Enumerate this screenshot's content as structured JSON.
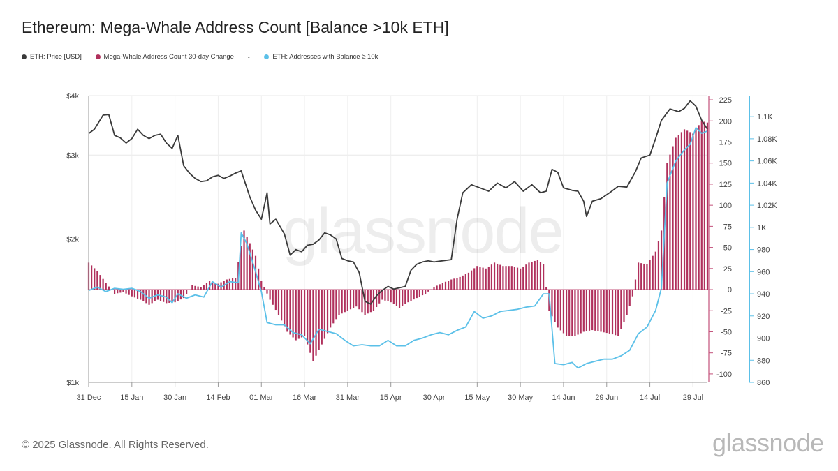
{
  "title": "Ethereum: Mega-Whale Address Count [Balance >10k ETH]",
  "legend": [
    {
      "label": "ETH: Price [USD]",
      "color": "#3a3a3a"
    },
    {
      "label": "Mega-Whale Address Count 30-day Change",
      "color": "#b0305c"
    },
    {
      "label": "ETH: Addresses with Balance ≥ 10k",
      "color": "#5bc0e8"
    }
  ],
  "legend_separator": "-",
  "watermark": "glassnode",
  "footer": "© 2025 Glassnode. All Rights Reserved.",
  "brand": "glassnode",
  "chart_data": {
    "type": "line",
    "x_tick_labels": [
      "31 Dec",
      "15 Jan",
      "30 Jan",
      "14 Feb",
      "01 Mar",
      "16 Mar",
      "31 Mar",
      "15 Apr",
      "30 Apr",
      "15 May",
      "30 May",
      "14 Jun",
      "29 Jun",
      "14 Jul",
      "29 Jul"
    ],
    "x_tick_dates": [
      "2024-12-31",
      "2025-01-15",
      "2025-01-30",
      "2025-02-14",
      "2025-03-01",
      "2025-03-16",
      "2025-03-31",
      "2025-04-15",
      "2025-04-30",
      "2025-05-15",
      "2025-05-30",
      "2025-06-14",
      "2025-06-29",
      "2025-07-14",
      "2025-07-29"
    ],
    "x_range": [
      "2024-12-31",
      "2025-08-03"
    ],
    "y_left": {
      "label": "",
      "scale": "log",
      "range": [
        1000,
        4000
      ],
      "tick_labels": [
        "$1k",
        "$2k",
        "$3k",
        "$4k"
      ],
      "tick_values": [
        1000,
        2000,
        3000,
        4000
      ]
    },
    "y_right_change": {
      "label": "",
      "range": [
        -110,
        230
      ],
      "ticks": [
        -100,
        -75,
        -50,
        -25,
        0,
        25,
        50,
        75,
        100,
        125,
        150,
        175,
        200,
        225
      ]
    },
    "y_right_count": {
      "label": "",
      "range": [
        860,
        1119
      ],
      "tick_labels": [
        "860",
        "880",
        "900",
        "920",
        "940",
        "960",
        "980",
        "1K",
        "1.02K",
        "1.04K",
        "1.06K",
        "1.08K",
        "1.1K"
      ],
      "tick_values": [
        860,
        880,
        900,
        920,
        940,
        960,
        980,
        1000,
        1020,
        1040,
        1060,
        1080,
        1100
      ]
    },
    "grid": true,
    "series": [
      {
        "name": "ETH: Price [USD]",
        "axis": "left",
        "type": "line",
        "color": "#3a3a3a",
        "points": [
          [
            "2024-12-31",
            3330
          ],
          [
            "2025-01-02",
            3400
          ],
          [
            "2025-01-05",
            3640
          ],
          [
            "2025-01-07",
            3650
          ],
          [
            "2025-01-09",
            3300
          ],
          [
            "2025-01-11",
            3260
          ],
          [
            "2025-01-13",
            3180
          ],
          [
            "2025-01-15",
            3250
          ],
          [
            "2025-01-17",
            3400
          ],
          [
            "2025-01-19",
            3300
          ],
          [
            "2025-01-21",
            3250
          ],
          [
            "2025-01-23",
            3300
          ],
          [
            "2025-01-25",
            3320
          ],
          [
            "2025-01-27",
            3180
          ],
          [
            "2025-01-29",
            3100
          ],
          [
            "2025-01-31",
            3300
          ],
          [
            "2025-02-02",
            2850
          ],
          [
            "2025-02-04",
            2750
          ],
          [
            "2025-02-06",
            2680
          ],
          [
            "2025-02-08",
            2640
          ],
          [
            "2025-02-10",
            2650
          ],
          [
            "2025-02-12",
            2700
          ],
          [
            "2025-02-14",
            2720
          ],
          [
            "2025-02-16",
            2680
          ],
          [
            "2025-02-18",
            2710
          ],
          [
            "2025-02-20",
            2750
          ],
          [
            "2025-02-22",
            2780
          ],
          [
            "2025-02-25",
            2450
          ],
          [
            "2025-02-27",
            2300
          ],
          [
            "2025-03-01",
            2200
          ],
          [
            "2025-03-03",
            2500
          ],
          [
            "2025-03-04",
            2150
          ],
          [
            "2025-03-06",
            2200
          ],
          [
            "2025-03-09",
            2050
          ],
          [
            "2025-03-11",
            1850
          ],
          [
            "2025-03-13",
            1900
          ],
          [
            "2025-03-15",
            1880
          ],
          [
            "2025-03-17",
            1940
          ],
          [
            "2025-03-19",
            1950
          ],
          [
            "2025-03-21",
            1990
          ],
          [
            "2025-03-23",
            2060
          ],
          [
            "2025-03-25",
            2040
          ],
          [
            "2025-03-27",
            2000
          ],
          [
            "2025-03-29",
            1820
          ],
          [
            "2025-03-31",
            1800
          ],
          [
            "2025-04-02",
            1790
          ],
          [
            "2025-04-04",
            1700
          ],
          [
            "2025-04-06",
            1480
          ],
          [
            "2025-04-08",
            1460
          ],
          [
            "2025-04-10",
            1520
          ],
          [
            "2025-04-12",
            1560
          ],
          [
            "2025-04-14",
            1590
          ],
          [
            "2025-04-16",
            1570
          ],
          [
            "2025-04-18",
            1580
          ],
          [
            "2025-04-20",
            1590
          ],
          [
            "2025-04-22",
            1720
          ],
          [
            "2025-04-24",
            1770
          ],
          [
            "2025-04-26",
            1790
          ],
          [
            "2025-04-28",
            1800
          ],
          [
            "2025-04-30",
            1790
          ],
          [
            "2025-05-03",
            1800
          ],
          [
            "2025-05-06",
            1810
          ],
          [
            "2025-05-08",
            2200
          ],
          [
            "2025-05-10",
            2500
          ],
          [
            "2025-05-13",
            2600
          ],
          [
            "2025-05-16",
            2560
          ],
          [
            "2025-05-19",
            2520
          ],
          [
            "2025-05-22",
            2620
          ],
          [
            "2025-05-25",
            2560
          ],
          [
            "2025-05-28",
            2640
          ],
          [
            "2025-05-31",
            2520
          ],
          [
            "2025-06-03",
            2600
          ],
          [
            "2025-06-06",
            2500
          ],
          [
            "2025-06-08",
            2520
          ],
          [
            "2025-06-10",
            2800
          ],
          [
            "2025-06-12",
            2760
          ],
          [
            "2025-06-14",
            2560
          ],
          [
            "2025-06-17",
            2530
          ],
          [
            "2025-06-19",
            2520
          ],
          [
            "2025-06-21",
            2400
          ],
          [
            "2025-06-22",
            2230
          ],
          [
            "2025-06-24",
            2400
          ],
          [
            "2025-06-27",
            2430
          ],
          [
            "2025-06-30",
            2500
          ],
          [
            "2025-07-03",
            2580
          ],
          [
            "2025-07-06",
            2570
          ],
          [
            "2025-07-09",
            2770
          ],
          [
            "2025-07-11",
            2960
          ],
          [
            "2025-07-14",
            3000
          ],
          [
            "2025-07-16",
            3250
          ],
          [
            "2025-07-18",
            3550
          ],
          [
            "2025-07-21",
            3750
          ],
          [
            "2025-07-24",
            3700
          ],
          [
            "2025-07-26",
            3760
          ],
          [
            "2025-07-28",
            3900
          ],
          [
            "2025-07-30",
            3800
          ],
          [
            "2025-08-01",
            3550
          ],
          [
            "2025-08-03",
            3400
          ]
        ]
      },
      {
        "name": "Mega-Whale Address Count 30-day Change",
        "axis": "right_change",
        "type": "bar",
        "color": "#b0305c",
        "points": [
          [
            "2024-12-31",
            32
          ],
          [
            "2025-01-03",
            22
          ],
          [
            "2025-01-06",
            8
          ],
          [
            "2025-01-09",
            -5
          ],
          [
            "2025-01-12",
            -3
          ],
          [
            "2025-01-15",
            -8
          ],
          [
            "2025-01-18",
            -12
          ],
          [
            "2025-01-21",
            -18
          ],
          [
            "2025-01-24",
            -12
          ],
          [
            "2025-01-27",
            -16
          ],
          [
            "2025-01-30",
            -15
          ],
          [
            "2025-02-02",
            -10
          ],
          [
            "2025-02-05",
            5
          ],
          [
            "2025-02-08",
            3
          ],
          [
            "2025-02-11",
            10
          ],
          [
            "2025-02-14",
            7
          ],
          [
            "2025-02-17",
            12
          ],
          [
            "2025-02-20",
            14
          ],
          [
            "2025-02-23",
            70
          ],
          [
            "2025-02-25",
            55
          ],
          [
            "2025-02-27",
            40
          ],
          [
            "2025-03-01",
            10
          ],
          [
            "2025-03-04",
            -12
          ],
          [
            "2025-03-07",
            -30
          ],
          [
            "2025-03-10",
            -50
          ],
          [
            "2025-03-13",
            -60
          ],
          [
            "2025-03-16",
            -55
          ],
          [
            "2025-03-19",
            -85
          ],
          [
            "2025-03-22",
            -65
          ],
          [
            "2025-03-25",
            -45
          ],
          [
            "2025-03-28",
            -30
          ],
          [
            "2025-03-31",
            -25
          ],
          [
            "2025-04-03",
            -20
          ],
          [
            "2025-04-06",
            -30
          ],
          [
            "2025-04-09",
            -25
          ],
          [
            "2025-04-12",
            -12
          ],
          [
            "2025-04-15",
            -15
          ],
          [
            "2025-04-18",
            -22
          ],
          [
            "2025-04-21",
            -15
          ],
          [
            "2025-04-24",
            -10
          ],
          [
            "2025-04-27",
            -5
          ],
          [
            "2025-04-30",
            3
          ],
          [
            "2025-05-03",
            8
          ],
          [
            "2025-05-06",
            12
          ],
          [
            "2025-05-09",
            15
          ],
          [
            "2025-05-12",
            20
          ],
          [
            "2025-05-15",
            28
          ],
          [
            "2025-05-18",
            25
          ],
          [
            "2025-05-21",
            32
          ],
          [
            "2025-05-24",
            28
          ],
          [
            "2025-05-27",
            28
          ],
          [
            "2025-05-30",
            25
          ],
          [
            "2025-06-02",
            32
          ],
          [
            "2025-06-05",
            35
          ],
          [
            "2025-06-07",
            30
          ],
          [
            "2025-06-09",
            -25
          ],
          [
            "2025-06-12",
            -45
          ],
          [
            "2025-06-15",
            -55
          ],
          [
            "2025-06-18",
            -55
          ],
          [
            "2025-06-21",
            -50
          ],
          [
            "2025-06-24",
            -48
          ],
          [
            "2025-06-27",
            -50
          ],
          [
            "2025-06-30",
            -52
          ],
          [
            "2025-07-03",
            -55
          ],
          [
            "2025-07-06",
            -30
          ],
          [
            "2025-07-08",
            -8
          ],
          [
            "2025-07-10",
            32
          ],
          [
            "2025-07-13",
            30
          ],
          [
            "2025-07-16",
            45
          ],
          [
            "2025-07-18",
            70
          ],
          [
            "2025-07-20",
            150
          ],
          [
            "2025-07-23",
            180
          ],
          [
            "2025-07-26",
            190
          ],
          [
            "2025-07-29",
            185
          ],
          [
            "2025-08-01",
            200
          ],
          [
            "2025-08-03",
            198
          ]
        ]
      },
      {
        "name": "ETH: Addresses with Balance ≥ 10k",
        "axis": "right_count",
        "type": "line",
        "color": "#5bc0e8",
        "points": [
          [
            "2024-12-31",
            943
          ],
          [
            "2025-01-03",
            946
          ],
          [
            "2025-01-06",
            942
          ],
          [
            "2025-01-09",
            945
          ],
          [
            "2025-01-12",
            944
          ],
          [
            "2025-01-15",
            945
          ],
          [
            "2025-01-18",
            942
          ],
          [
            "2025-01-21",
            936
          ],
          [
            "2025-01-24",
            939
          ],
          [
            "2025-01-27",
            937
          ],
          [
            "2025-01-29",
            932
          ],
          [
            "2025-01-31",
            940
          ],
          [
            "2025-02-03",
            936
          ],
          [
            "2025-02-06",
            939
          ],
          [
            "2025-02-09",
            937
          ],
          [
            "2025-02-12",
            951
          ],
          [
            "2025-02-15",
            946
          ],
          [
            "2025-02-18",
            951
          ],
          [
            "2025-02-21",
            950
          ],
          [
            "2025-02-22",
            995
          ],
          [
            "2025-02-24",
            985
          ],
          [
            "2025-02-27",
            960
          ],
          [
            "2025-03-01",
            942
          ],
          [
            "2025-03-03",
            914
          ],
          [
            "2025-03-06",
            912
          ],
          [
            "2025-03-09",
            912
          ],
          [
            "2025-03-12",
            905
          ],
          [
            "2025-03-15",
            903
          ],
          [
            "2025-03-18",
            895
          ],
          [
            "2025-03-21",
            908
          ],
          [
            "2025-03-24",
            906
          ],
          [
            "2025-03-27",
            904
          ],
          [
            "2025-03-30",
            898
          ],
          [
            "2025-04-02",
            893
          ],
          [
            "2025-04-05",
            894
          ],
          [
            "2025-04-08",
            893
          ],
          [
            "2025-04-11",
            893
          ],
          [
            "2025-04-14",
            898
          ],
          [
            "2025-04-17",
            893
          ],
          [
            "2025-04-20",
            893
          ],
          [
            "2025-04-23",
            898
          ],
          [
            "2025-04-26",
            900
          ],
          [
            "2025-04-29",
            903
          ],
          [
            "2025-05-02",
            905
          ],
          [
            "2025-05-05",
            903
          ],
          [
            "2025-05-08",
            907
          ],
          [
            "2025-05-11",
            910
          ],
          [
            "2025-05-14",
            924
          ],
          [
            "2025-05-17",
            918
          ],
          [
            "2025-05-20",
            920
          ],
          [
            "2025-05-23",
            924
          ],
          [
            "2025-05-26",
            925
          ],
          [
            "2025-05-29",
            926
          ],
          [
            "2025-06-01",
            928
          ],
          [
            "2025-06-04",
            929
          ],
          [
            "2025-06-07",
            940
          ],
          [
            "2025-06-09",
            940
          ],
          [
            "2025-06-11",
            877
          ],
          [
            "2025-06-14",
            876
          ],
          [
            "2025-06-17",
            878
          ],
          [
            "2025-06-19",
            873
          ],
          [
            "2025-06-22",
            877
          ],
          [
            "2025-06-25",
            879
          ],
          [
            "2025-06-28",
            881
          ],
          [
            "2025-07-01",
            881
          ],
          [
            "2025-07-04",
            884
          ],
          [
            "2025-07-07",
            889
          ],
          [
            "2025-07-10",
            904
          ],
          [
            "2025-07-13",
            910
          ],
          [
            "2025-07-16",
            925
          ],
          [
            "2025-07-18",
            945
          ],
          [
            "2025-07-20",
            1040
          ],
          [
            "2025-07-23",
            1060
          ],
          [
            "2025-07-26",
            1070
          ],
          [
            "2025-07-28",
            1075
          ],
          [
            "2025-07-30",
            1090
          ],
          [
            "2025-08-01",
            1085
          ],
          [
            "2025-08-03",
            1087
          ]
        ]
      }
    ]
  }
}
